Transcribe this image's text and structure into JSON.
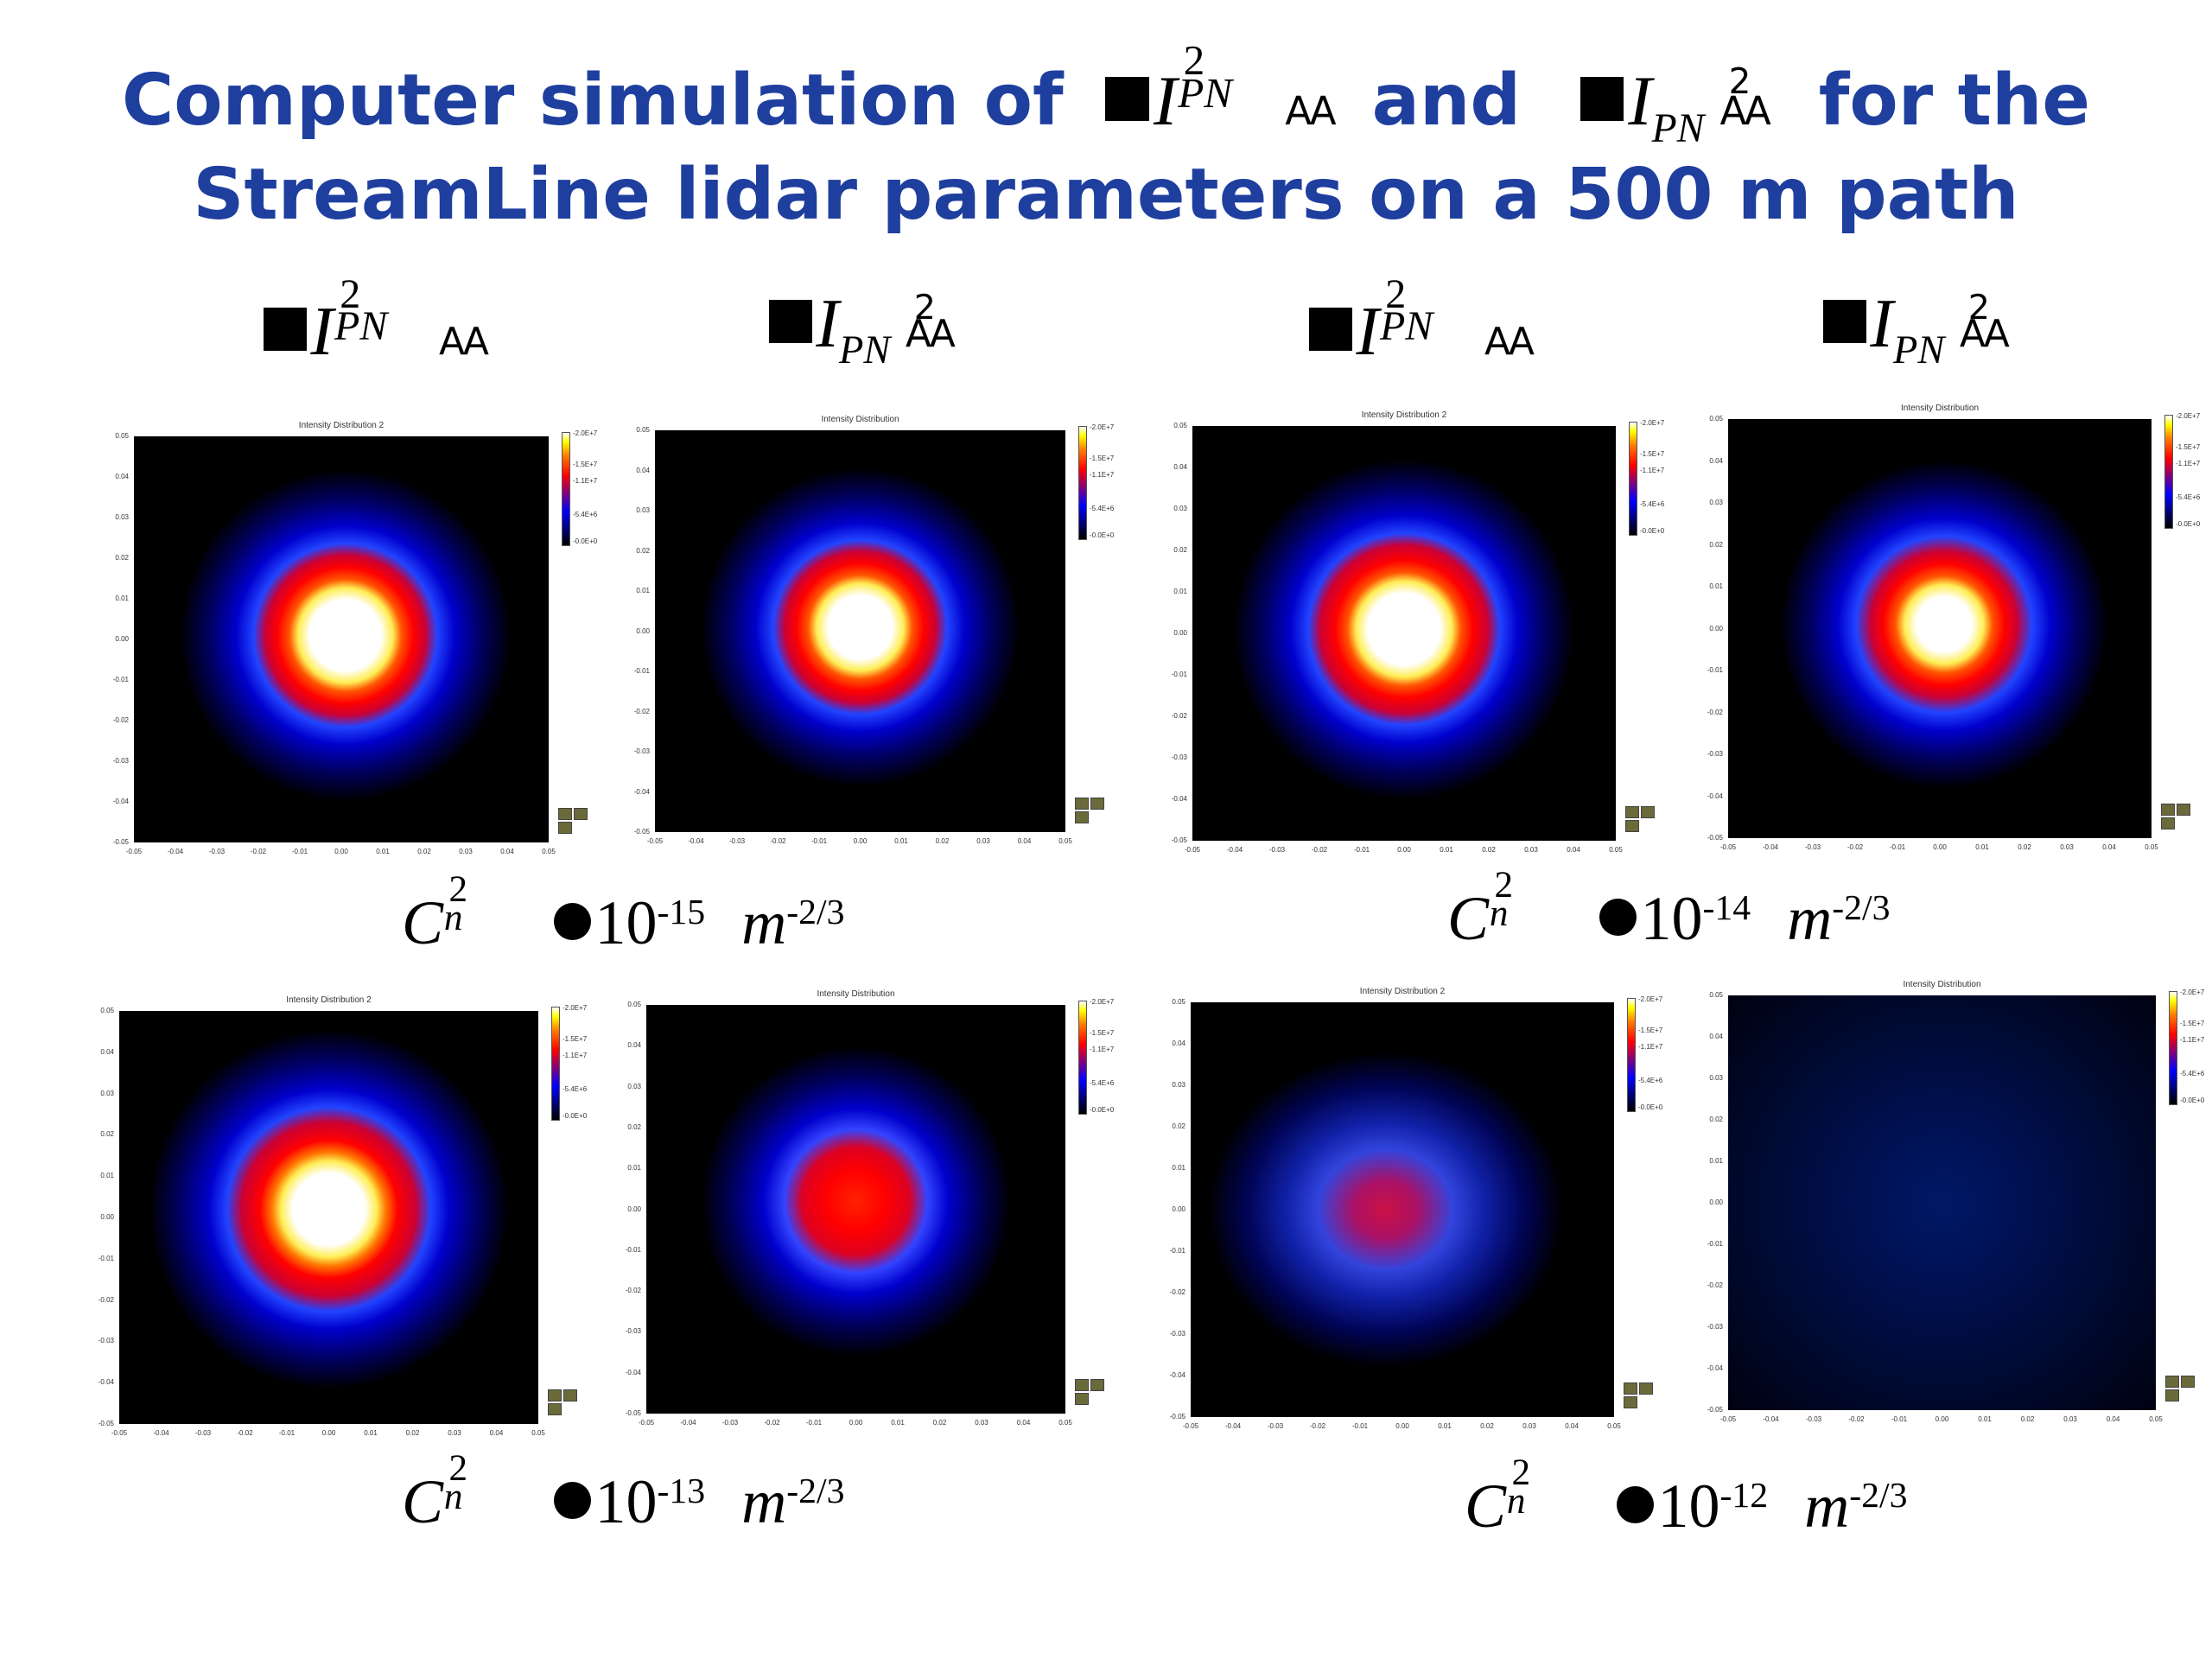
{
  "title": {
    "line1_prefix": "Computer simulation of",
    "line1_and": "and",
    "line1_suffix": "for the",
    "line2": "StreamLine lidar parameters on a 500 m path"
  },
  "symbols": {
    "I": "I",
    "PN": "PN",
    "sq": "2",
    "aa": "AA",
    "C": "C",
    "n": "n",
    "ten": "10",
    "m": "m",
    "exp_m": "-2/3"
  },
  "column_headers": [
    {
      "kind": "I2"
    },
    {
      "kind": "Isq"
    },
    {
      "kind": "I2"
    },
    {
      "kind": "Isq"
    }
  ],
  "cn2_labels": [
    {
      "exp": "-15"
    },
    {
      "exp": "-14"
    },
    {
      "exp": "-13"
    },
    {
      "exp": "-12"
    }
  ],
  "panel_titles": {
    "dist2": "Intensity Distribution 2",
    "dist": "Intensity Distribution"
  },
  "axis_ticks": {
    "y": [
      "0.05",
      "0.04",
      "0.03",
      "0.02",
      "0.01",
      "0.00",
      "-0.01",
      "-0.02",
      "-0.03",
      "-0.04",
      "-0.05"
    ],
    "x": [
      "-0.05",
      "-0.04",
      "-0.03",
      "-0.02",
      "-0.01",
      "0.00",
      "0.01",
      "0.02",
      "0.03",
      "0.04",
      "0.05"
    ]
  },
  "colorbar_labels": [
    "2.0E+7",
    "1.5E+7",
    "1.1E+7",
    "5.4E+6",
    "0.0E+0"
  ],
  "colors": {
    "title": "#1f3f9f",
    "background": "#ffffff",
    "plot_bg": "#000000"
  }
}
